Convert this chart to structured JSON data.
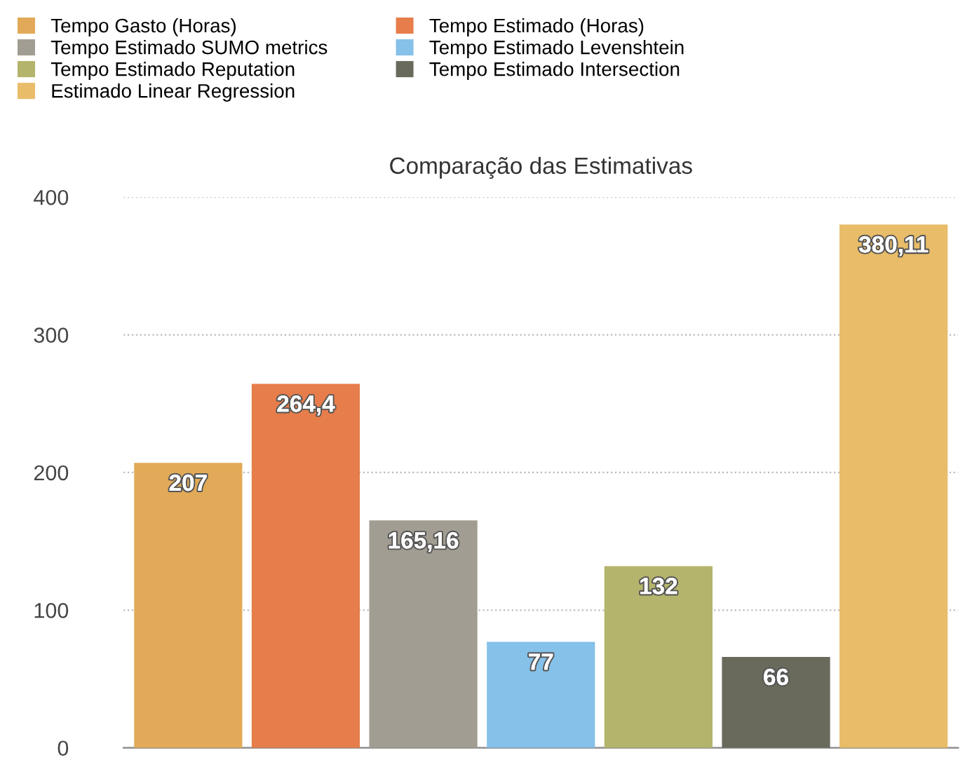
{
  "chart_data": {
    "type": "bar",
    "title": "Comparação das Estimativas",
    "categories": [
      null,
      null,
      null,
      null,
      null,
      null,
      null
    ],
    "series": [
      {
        "name": "Tempo Gasto (Horas)",
        "color": "#e2aa58",
        "values": [
          207,
          null,
          null,
          null,
          null,
          null,
          null
        ]
      },
      {
        "name": "Tempo Estimado (Horas)",
        "color": "#e67d4a",
        "values": [
          null,
          264.4,
          null,
          null,
          null,
          null,
          null
        ]
      },
      {
        "name": "Tempo Estimado SUMO metrics",
        "color": "#a29d92",
        "values": [
          null,
          null,
          165.16,
          null,
          null,
          null,
          null
        ]
      },
      {
        "name": "Tempo Estimado Levenshtein",
        "color": "#85c1e9",
        "values": [
          null,
          null,
          null,
          77,
          null,
          null,
          null
        ]
      },
      {
        "name": "Tempo Estimado Reputation",
        "color": "#b4b46c",
        "values": [
          null,
          null,
          null,
          null,
          132,
          null,
          null
        ]
      },
      {
        "name": "Tempo Estimado Intersection",
        "color": "#6a6a5c",
        "values": [
          null,
          null,
          null,
          null,
          null,
          66,
          null
        ]
      },
      {
        "name": "Estimado Linear Regression",
        "color": "#e8bc68",
        "values": [
          null,
          null,
          null,
          null,
          null,
          null,
          380.11
        ]
      }
    ],
    "value_labels": [
      "207",
      "264,4",
      "165,16",
      "77",
      "132",
      "66",
      "380,11"
    ],
    "ylim": [
      0,
      400
    ],
    "yticks": [
      0,
      100,
      200,
      300,
      400
    ],
    "grid": "y",
    "legend": "top left",
    "tick_labels": "y"
  }
}
